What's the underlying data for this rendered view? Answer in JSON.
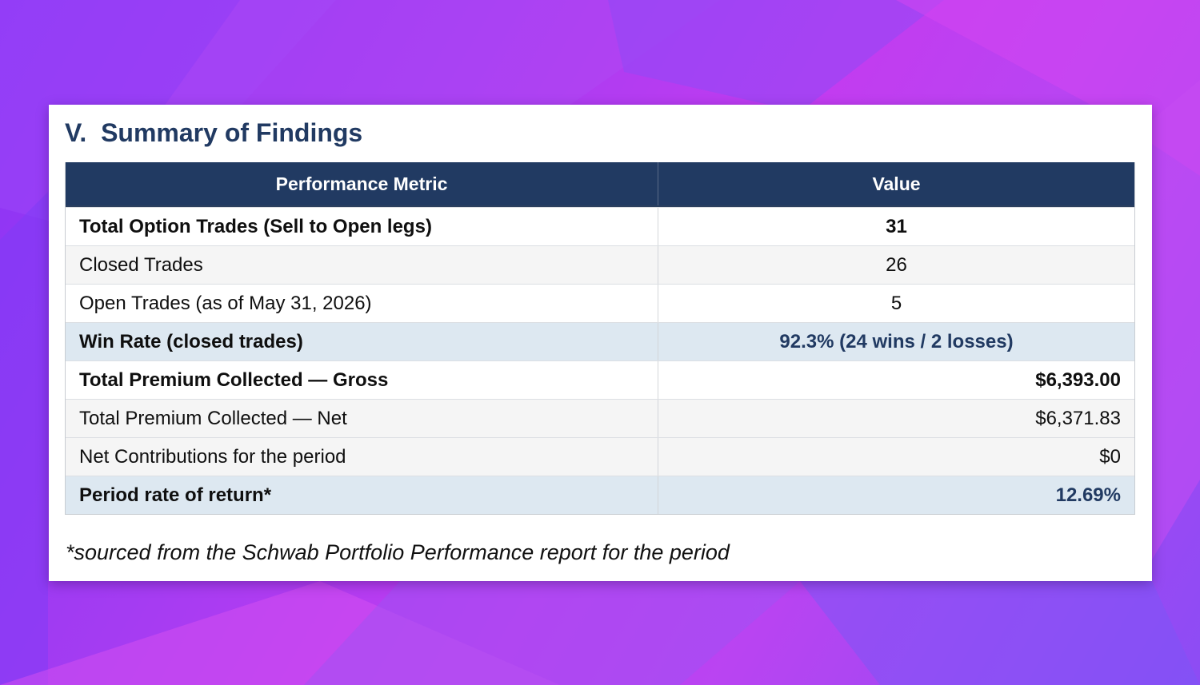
{
  "title": "V.  Summary of Findings",
  "table": {
    "headers": [
      "Performance Metric",
      "Value"
    ],
    "rows": [
      {
        "metric": "Total Option Trades (Sell to Open legs)",
        "value": "31"
      },
      {
        "metric": "Closed Trades",
        "value": "26"
      },
      {
        "metric": "Open Trades (as of May 31, 2026)",
        "value": "5"
      },
      {
        "metric": "Win Rate (closed trades)",
        "value": "92.3%  (24 wins / 2 losses)"
      },
      {
        "metric": "Total Premium Collected — Gross",
        "value": "$6,393.00"
      },
      {
        "metric": "Total Premium Collected — Net",
        "value": "$6,371.83"
      },
      {
        "metric": "Net Contributions for the period",
        "value": "$0"
      },
      {
        "metric": "Period rate of return*",
        "value": "12.69%"
      }
    ]
  },
  "footnote": "*sourced from the Schwab Portfolio Performance report for the period",
  "colors": {
    "header_bg": "#213a62",
    "accent_text": "#213a62",
    "highlight_row": "#dde8f1",
    "alt_row": "#f5f5f5",
    "background_gradient": [
      "#8a34f5",
      "#c23cf0",
      "#8c4cf4"
    ]
  }
}
